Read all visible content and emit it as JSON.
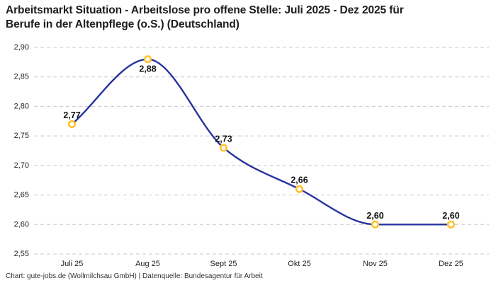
{
  "title": "Arbeitsmarkt Situation - Arbeitslose pro offene Stelle: Juli 2025 - Dez 2025 für Berufe in der Altenpflege (o.S.) (Deutschland)",
  "title_lines": [
    "Arbeitsmarkt Situation - Arbeitslose pro offene Stelle: Juli 2025 - Dez 2025 für",
    "Berufe in der Altenpflege (o.S.) (Deutschland)"
  ],
  "footer": "Chart: gute-jobs.de (Wollmilchsau GmbH) | Datenquelle: Bundesagentur für Arbeit",
  "chart_data": {
    "type": "line",
    "title": "Arbeitsmarkt Situation - Arbeitslose pro offene Stelle: Juli 2025 - Dez 2025 für Berufe in der Altenpflege (o.S.) (Deutschland)",
    "categories": [
      "Juli 25",
      "Aug 25",
      "Sept 25",
      "Okt 25",
      "Nov 25",
      "Dez 25"
    ],
    "series": [
      {
        "name": "Arbeitslose pro offene Stelle",
        "values": [
          2.77,
          2.88,
          2.73,
          2.66,
          2.6,
          2.6
        ],
        "point_labels": [
          "2,77",
          "2,88",
          "2,73",
          "2,66",
          "2,60",
          "2,60"
        ]
      }
    ],
    "xlabel": "",
    "ylabel": "",
    "ylim": [
      2.55,
      2.9
    ],
    "ytick_values": [
      2.55,
      2.6,
      2.65,
      2.7,
      2.75,
      2.8,
      2.85,
      2.9
    ],
    "ytick_labels": [
      "2,55",
      "2,60",
      "2,65",
      "2,70",
      "2,75",
      "2,80",
      "2,85",
      "2,90"
    ],
    "grid": "horizontal-dashed",
    "curve": "monotone",
    "legend": "none",
    "colors": {
      "line": "#27349e",
      "marker_stroke": "#ffc32e",
      "marker_fill": "#ffffff",
      "grid": "#c9c9c9",
      "tick_text": "#222222",
      "point_label_text": "#111111",
      "title_text": "#1c1c1c",
      "footer_text": "#333333",
      "background": "#ffffff"
    }
  }
}
